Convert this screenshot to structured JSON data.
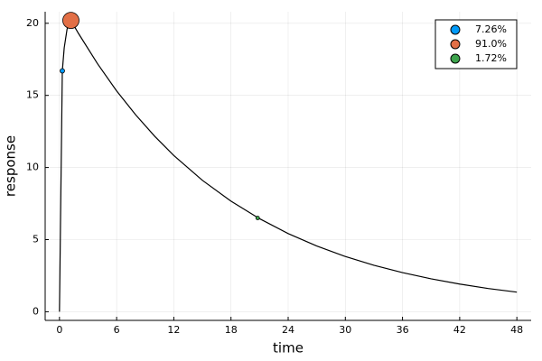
{
  "chart_data": {
    "type": "line",
    "x_label": "time",
    "y_label": "response",
    "xlim": [
      -1.5,
      49.5
    ],
    "ylim": [
      -0.6,
      20.8
    ],
    "xticks": [
      0,
      6,
      12,
      18,
      24,
      30,
      36,
      42,
      48
    ],
    "yticks": [
      0,
      5,
      10,
      15,
      20
    ],
    "grid": true,
    "legend": "top-right",
    "line": {
      "color": "#000000",
      "x": [
        0,
        0.3,
        0.5,
        0.8,
        1.2,
        2,
        4,
        6,
        8,
        10,
        12,
        15,
        18,
        21,
        24,
        27,
        30,
        33,
        36,
        39,
        42,
        45,
        48
      ],
      "values": [
        0,
        16.7,
        18.3,
        19.6,
        20.2,
        19.29,
        17.19,
        15.31,
        13.65,
        12.16,
        10.83,
        9.11,
        7.67,
        6.45,
        5.42,
        4.56,
        3.83,
        3.22,
        2.71,
        2.28,
        1.92,
        1.61,
        1.36
      ]
    },
    "series": [
      {
        "type": "scatter",
        "name": "7.26%",
        "color": "#009af9",
        "markersize": 2.5,
        "x": [
          0.3
        ],
        "values": [
          16.7
        ]
      },
      {
        "type": "scatter",
        "name": "91.0%",
        "color": "#e26f46",
        "markersize": 9,
        "x": [
          1.2
        ],
        "values": [
          20.2
        ]
      },
      {
        "type": "scatter",
        "name": "1.72%",
        "color": "#3da44d",
        "markersize": 2,
        "x": [
          20.8
        ],
        "values": [
          6.5
        ]
      }
    ]
  }
}
